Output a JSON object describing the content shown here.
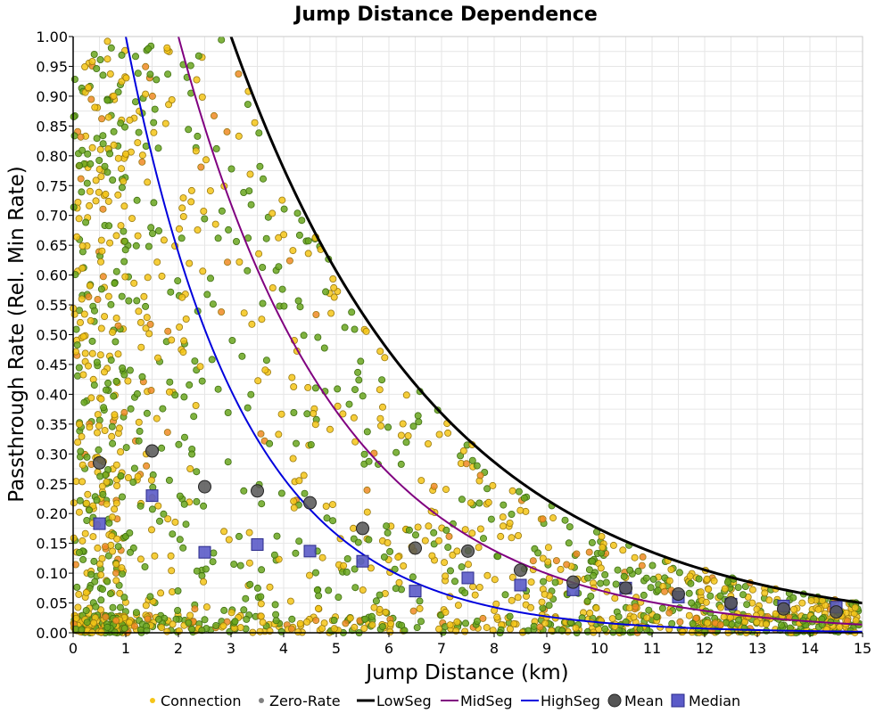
{
  "chart_data": {
    "type": "scatter",
    "title": "Jump Distance Dependence",
    "xlabel": "Jump Distance (km)",
    "ylabel": "Passthrough Rate (Rel. Min Rate)",
    "xlim": [
      0,
      15
    ],
    "ylim": [
      0,
      1
    ],
    "x_ticks": [
      "0",
      "1",
      "2",
      "3",
      "4",
      "5",
      "6",
      "7",
      "8",
      "9",
      "10",
      "11",
      "12",
      "13",
      "14",
      "15"
    ],
    "y_ticks": [
      "0.00",
      "0.05",
      "0.10",
      "0.15",
      "0.20",
      "0.25",
      "0.30",
      "0.35",
      "0.40",
      "0.45",
      "0.50",
      "0.55",
      "0.60",
      "0.65",
      "0.70",
      "0.75",
      "0.80",
      "0.85",
      "0.90",
      "0.95",
      "1.00"
    ],
    "grid": true,
    "legend_position": "bottom",
    "legend": [
      "Connection",
      "Zero-Rate",
      "LowSeg",
      "MidSeg",
      "HighSeg",
      "Mean",
      "Median"
    ],
    "colors": {
      "connection": "#f5c518",
      "connection_green": "#6aa61e",
      "connection_orange": "#f08a24",
      "zero_rate": "#808080",
      "lowseg": "#000000",
      "midseg": "#800080",
      "highseg": "#0000dd",
      "mean": "#555555",
      "median": "#5b5bc8"
    },
    "curves": [
      {
        "name": "LowSeg",
        "formula": "y = exp(-0.25*(x-3))",
        "x_start": 3,
        "x_end": 15
      },
      {
        "name": "MidSeg",
        "formula": "y = exp(-0.33*(x-2))",
        "x_start": 2,
        "x_end": 15
      },
      {
        "name": "HighSeg",
        "formula": "y = exp(-0.45*(x-1))",
        "x_start": 1,
        "x_end": 15
      }
    ],
    "mean": {
      "x": [
        0.5,
        1.5,
        2.5,
        3.5,
        4.5,
        5.5,
        6.5,
        7.5,
        8.5,
        9.5,
        10.5,
        11.5,
        12.5,
        13.5,
        14.5
      ],
      "y": [
        0.285,
        0.305,
        0.245,
        0.238,
        0.218,
        0.175,
        0.142,
        0.137,
        0.105,
        0.085,
        0.075,
        0.065,
        0.05,
        0.04,
        0.035
      ]
    },
    "median": {
      "x": [
        0.5,
        1.5,
        2.5,
        3.5,
        4.5,
        5.5,
        6.5,
        7.5,
        8.5,
        9.5,
        10.5,
        11.5,
        12.5,
        13.5,
        14.5
      ],
      "y": [
        0.183,
        0.23,
        0.135,
        0.148,
        0.137,
        0.12,
        0.07,
        0.092,
        0.08,
        0.072,
        0.075,
        0.06,
        0.048,
        0.045,
        0.043
      ]
    },
    "connection_points_count": 1800
  }
}
